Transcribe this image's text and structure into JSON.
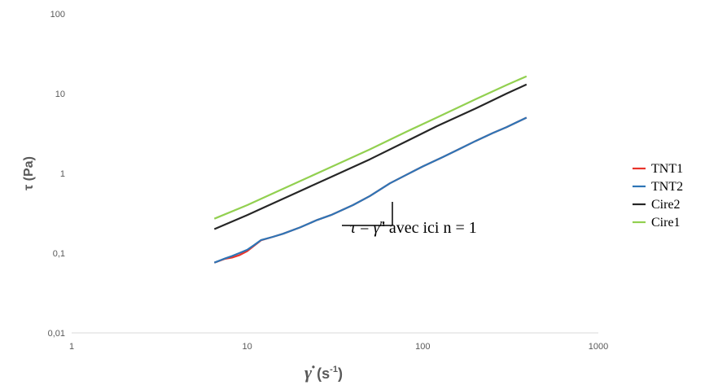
{
  "chart_data": {
    "type": "line",
    "xscale": "log",
    "yscale": "log",
    "xlim": [
      1,
      1000
    ],
    "ylim": [
      0.01,
      100
    ],
    "x_ticks": [
      "1",
      "10",
      "100",
      "1000"
    ],
    "y_ticks": [
      "0,01",
      "0,1",
      "1",
      "10",
      "100"
    ],
    "xlabel": {
      "symbol": "γ̇",
      "unit": "(s",
      "exp": "-1",
      "close": ")"
    },
    "ylabel": "τ (Pa)",
    "grid": false,
    "legend": "right",
    "series": [
      {
        "name": "TNT1",
        "color": "#e8342b",
        "x": [
          6.5,
          7.5,
          8.2,
          9.0,
          10,
          11,
          12,
          14,
          16,
          20,
          25,
          30,
          40,
          50,
          65,
          80,
          100,
          130,
          160,
          200,
          250,
          300,
          390
        ],
        "y": [
          0.076,
          0.085,
          0.088,
          0.094,
          0.106,
          0.125,
          0.145,
          0.16,
          0.175,
          0.21,
          0.26,
          0.3,
          0.4,
          0.52,
          0.75,
          0.95,
          1.22,
          1.6,
          2.0,
          2.55,
          3.2,
          3.8,
          5.0
        ]
      },
      {
        "name": "TNT2",
        "color": "#2e75b6",
        "x": [
          6.5,
          7.5,
          8.2,
          9.0,
          10,
          11,
          12,
          14,
          16,
          20,
          25,
          30,
          40,
          50,
          65,
          80,
          100,
          130,
          160,
          200,
          250,
          300,
          390
        ],
        "y": [
          0.076,
          0.086,
          0.092,
          0.1,
          0.11,
          0.127,
          0.146,
          0.16,
          0.175,
          0.21,
          0.26,
          0.3,
          0.4,
          0.52,
          0.75,
          0.95,
          1.22,
          1.6,
          2.0,
          2.55,
          3.2,
          3.8,
          5.0
        ]
      },
      {
        "name": "Cire2",
        "color": "#262626",
        "x": [
          6.5,
          10,
          15,
          20,
          30,
          50,
          80,
          120,
          200,
          300,
          390
        ],
        "y": [
          0.2,
          0.3,
          0.45,
          0.6,
          0.9,
          1.5,
          2.5,
          3.9,
          6.5,
          10.0,
          13.0
        ]
      },
      {
        "name": "Cire1",
        "color": "#92d050",
        "x": [
          6.5,
          10,
          15,
          20,
          30,
          50,
          80,
          120,
          200,
          300,
          390
        ],
        "y": [
          0.27,
          0.4,
          0.6,
          0.8,
          1.2,
          2.0,
          3.3,
          5.0,
          8.5,
          12.8,
          16.5
        ]
      }
    ],
    "annotation": {
      "tau": "τ",
      "eq": " = ",
      "gammadot": "γ̇",
      "exp": "n",
      "rest": " avec ici n = 1"
    }
  }
}
